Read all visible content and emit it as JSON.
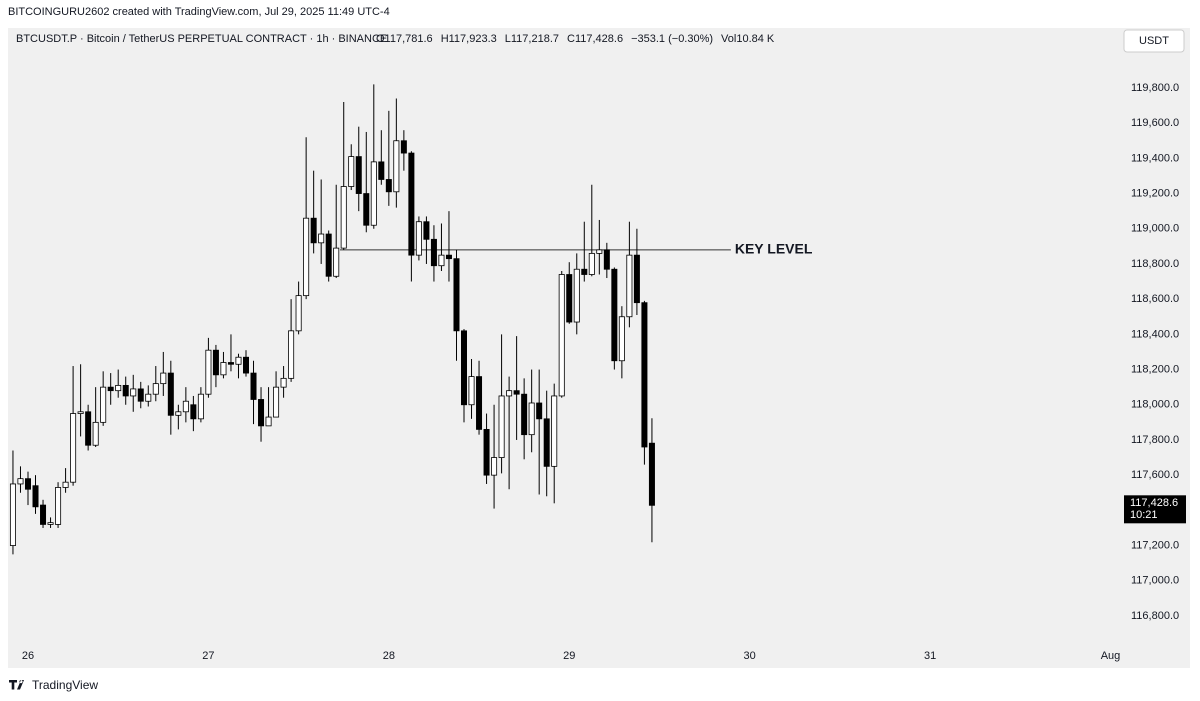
{
  "chart_data": {
    "type": "candlestick",
    "credit": "BITCOINGURU2602 created with TradingView.com, Jul 29, 2025 11:49 UTC-4",
    "symbol": "BTCUSDT.P · Bitcoin / TetherUS PERPETUAL CONTRACT · 1h · BINANCE",
    "ohlc_header": [
      "O117,781.6",
      "H117,923.3",
      "L117,218.7",
      "C117,428.6",
      "−353.1 (−0.30%)",
      "Vol10.84 K"
    ],
    "currency": "USDT",
    "brand": "TradingView",
    "x": [
      -2,
      -1,
      0,
      1,
      2,
      3,
      4,
      5,
      6,
      7,
      8,
      9,
      10,
      11,
      12,
      13,
      14,
      15,
      16,
      17,
      18,
      19,
      20,
      21,
      22,
      23,
      24,
      25,
      26,
      27,
      28,
      29,
      30,
      31,
      32,
      33,
      34,
      35,
      36,
      37,
      38,
      39,
      40,
      41,
      42,
      43,
      44,
      45,
      46,
      47,
      48,
      49,
      50,
      51,
      52,
      53,
      54,
      55,
      56,
      57,
      58,
      59,
      60,
      61,
      62,
      63,
      64,
      65,
      66,
      67,
      68,
      69,
      70,
      71,
      72,
      73,
      74,
      75,
      76,
      77,
      78,
      79,
      80,
      81,
      82,
      83
    ],
    "open": [
      117200,
      117550,
      117580,
      117540,
      117430,
      117320,
      117320,
      117530,
      117560,
      117950,
      117960,
      117770,
      117900,
      118100,
      118080,
      118110,
      118050,
      118090,
      118020,
      118060,
      118120,
      118180,
      117940,
      117960,
      118000,
      117920,
      118060,
      118310,
      118170,
      118240,
      118230,
      118270,
      118180,
      118030,
      117880,
      117930,
      118100,
      118150,
      118420,
      118620,
      119060,
      118920,
      118970,
      118730,
      118890,
      119240,
      119410,
      119200,
      119020,
      119380,
      119280,
      119210,
      119500,
      119430,
      118850,
      119040,
      118940,
      118790,
      118850,
      118830,
      118420,
      118000,
      118160,
      117860,
      117600,
      117700,
      118050,
      118080,
      118060,
      117830,
      118010,
      117920,
      117650,
      118050,
      118740,
      118470,
      118770,
      118740,
      118860,
      118880,
      118770,
      118250,
      118500,
      118850,
      118580,
      117781.6
    ],
    "high": [
      117740,
      117650,
      117620,
      117600,
      117460,
      117360,
      117560,
      117640,
      118220,
      118230,
      118000,
      118100,
      118190,
      118180,
      118200,
      118160,
      118170,
      118130,
      118110,
      118220,
      118300,
      118250,
      118000,
      118100,
      118050,
      118100,
      118380,
      118340,
      118300,
      118400,
      118290,
      118310,
      118250,
      118100,
      118100,
      118190,
      118220,
      118600,
      118700,
      119520,
      119330,
      119280,
      118990,
      119250,
      119720,
      119480,
      119580,
      119550,
      119820,
      119560,
      119670,
      119740,
      119560,
      119440,
      119070,
      119070,
      119020,
      119030,
      119100,
      118880,
      118430,
      118260,
      118250,
      117950,
      118000,
      118400,
      118160,
      118390,
      118150,
      118200,
      118200,
      118080,
      118120,
      118760,
      118810,
      118860,
      119040,
      119250,
      119050,
      118920,
      118780,
      118560,
      119040,
      119000,
      118590,
      117923.3
    ],
    "low": [
      117150,
      117500,
      117430,
      117380,
      117300,
      117300,
      117300,
      117500,
      117540,
      117820,
      117740,
      117760,
      117880,
      118000,
      118040,
      118000,
      117960,
      117980,
      117990,
      118020,
      118050,
      117830,
      117860,
      117900,
      117850,
      117900,
      118040,
      118100,
      118150,
      118190,
      118150,
      118160,
      117890,
      117790,
      117880,
      117930,
      118040,
      118130,
      118400,
      118600,
      118860,
      118800,
      118700,
      118720,
      118880,
      119220,
      119100,
      118980,
      119000,
      119250,
      119130,
      119120,
      119330,
      118700,
      118820,
      118800,
      118700,
      118760,
      118700,
      118250,
      117900,
      117920,
      117830,
      117550,
      117410,
      117610,
      117520,
      117800,
      117690,
      117730,
      117490,
      117480,
      117440,
      118040,
      118460,
      118400,
      118700,
      118730,
      118740,
      118720,
      118200,
      118150,
      118440,
      118510,
      117660,
      117218.7
    ],
    "close": [
      117550,
      117580,
      117520,
      117420,
      117320,
      117330,
      117530,
      117560,
      117950,
      117960,
      117770,
      117900,
      118100,
      118080,
      118110,
      118050,
      118090,
      118020,
      118060,
      118120,
      118180,
      117940,
      117960,
      118020,
      117920,
      118060,
      118310,
      118170,
      118240,
      118230,
      118270,
      118180,
      118030,
      117880,
      117930,
      118100,
      118150,
      118420,
      118620,
      119060,
      118920,
      118970,
      118730,
      118890,
      119240,
      119410,
      119200,
      119020,
      119380,
      119280,
      119210,
      119500,
      119430,
      118850,
      119040,
      118940,
      118790,
      118850,
      118830,
      118420,
      118000,
      118160,
      117860,
      117600,
      117700,
      118050,
      118080,
      118060,
      117830,
      118010,
      117920,
      117650,
      118050,
      118740,
      118470,
      118770,
      118740,
      118860,
      118880,
      118770,
      118250,
      118500,
      118850,
      118580,
      117760,
      117428.6
    ],
    "up_color": "#ffffff",
    "down_color": "#000000",
    "outline_color": "#000000",
    "xlim": [
      -2.66,
      144.2
    ],
    "xticks": [
      {
        "value": 0,
        "label": "26"
      },
      {
        "value": 24,
        "label": "27"
      },
      {
        "value": 48,
        "label": "28"
      },
      {
        "value": 72,
        "label": "29"
      },
      {
        "value": 96,
        "label": "30"
      },
      {
        "value": 120,
        "label": "31"
      },
      {
        "value": 144,
        "label": "Aug"
      }
    ],
    "ylim": [
      116652,
      120027
    ],
    "yticks": [
      {
        "value": 116800,
        "label": "116,800.0"
      },
      {
        "value": 117000,
        "label": "117,000.0"
      },
      {
        "value": 117200,
        "label": "117,200.0"
      },
      {
        "value": 117400,
        "label": "117,400.0"
      },
      {
        "value": 117600,
        "label": "117,600.0"
      },
      {
        "value": 117800,
        "label": "117,800.0"
      },
      {
        "value": 118000,
        "label": "118,000.0"
      },
      {
        "value": 118200,
        "label": "118,200.0"
      },
      {
        "value": 118400,
        "label": "118,400.0"
      },
      {
        "value": 118600,
        "label": "118,600.0"
      },
      {
        "value": 118800,
        "label": "118,800.0"
      },
      {
        "value": 119000,
        "label": "119,000.0"
      },
      {
        "value": 119200,
        "label": "119,200.0"
      },
      {
        "value": 119400,
        "label": "119,400.0"
      },
      {
        "value": 119600,
        "label": "119,600.0"
      },
      {
        "value": 119800,
        "label": "119,800.0"
      }
    ],
    "key_level": {
      "label": "KEY LEVEL",
      "value": 118880,
      "x": [
        41.5,
        93.5
      ]
    },
    "last_price": {
      "value": 117428.6,
      "label": "117,428.6",
      "countdown": "10:21"
    }
  }
}
